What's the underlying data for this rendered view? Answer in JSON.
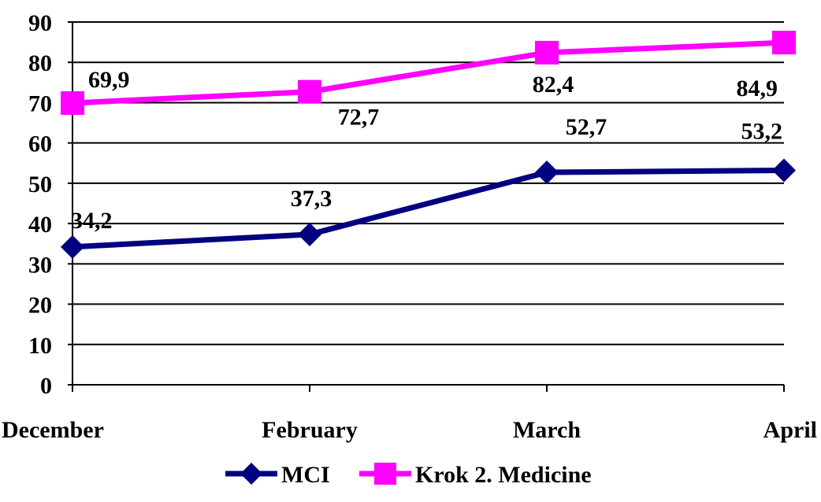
{
  "chart_data": {
    "type": "line",
    "categories": [
      "December",
      "February",
      "March",
      "April"
    ],
    "series": [
      {
        "name": "MCI",
        "values": [
          34.2,
          37.3,
          52.7,
          53.2
        ],
        "labels": [
          "34,2",
          "37,3",
          "52,7",
          "53,2"
        ],
        "color": "#000080",
        "marker": "diamond"
      },
      {
        "name": "Krok 2. Medicine",
        "values": [
          69.9,
          72.7,
          82.4,
          84.9
        ],
        "labels": [
          "69,9",
          "72,7",
          "82,4",
          "84,9"
        ],
        "color": "#FF00FF",
        "marker": "square"
      }
    ],
    "yticks": [
      "0",
      "10",
      "20",
      "30",
      "40",
      "50",
      "60",
      "70",
      "80",
      "90"
    ],
    "ylim": [
      0,
      90
    ],
    "grid": true,
    "legend_position": "bottom"
  }
}
